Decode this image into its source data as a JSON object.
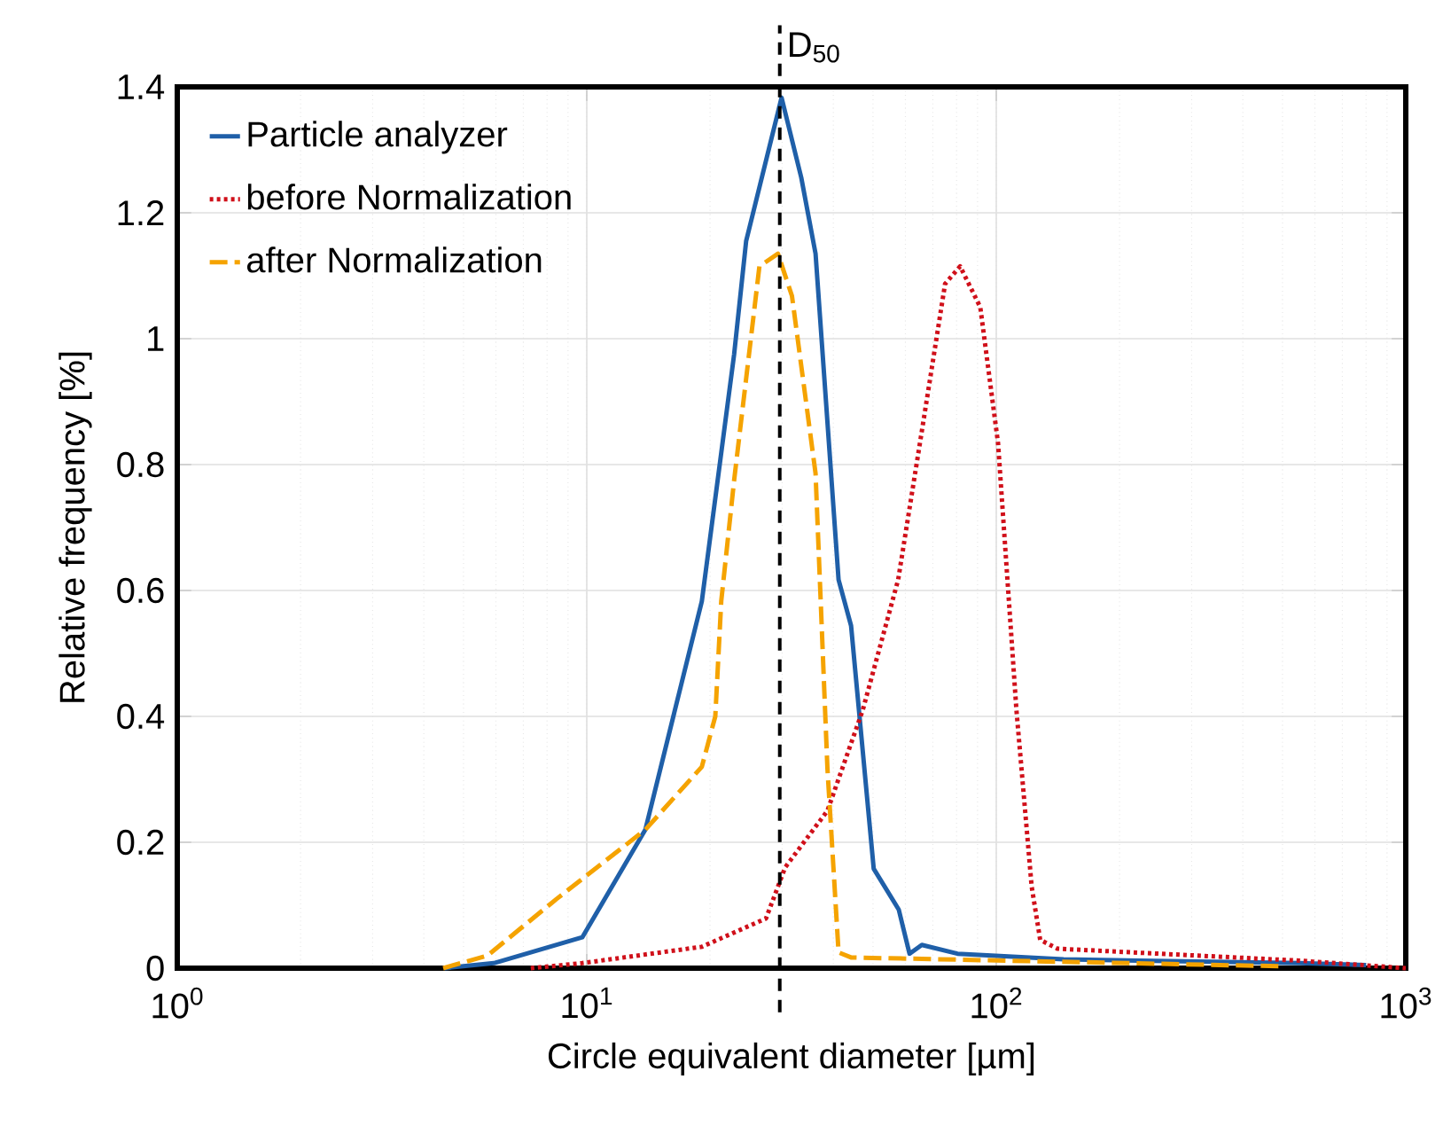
{
  "chart_data": {
    "type": "line",
    "xlabel": "Circle equivalent diameter [µm]",
    "ylabel": "Relative frequency [%]",
    "log": "x",
    "xlim": [
      1,
      1000
    ],
    "ylim": [
      0,
      1.4
    ],
    "xticks": [
      {
        "value": 1,
        "label": "10$^{0}$"
      },
      {
        "value": 10,
        "label": "10$^{1}$"
      },
      {
        "value": 100,
        "label": "10$^{2}$"
      },
      {
        "value": 1000,
        "label": "10$^{3}$"
      }
    ],
    "yticks": [
      0,
      0.2,
      0.4,
      0.6,
      0.8,
      1,
      1.2,
      1.4
    ],
    "grid": true,
    "legend": "top left",
    "ref_lines": [
      {
        "axis": "x",
        "value": 29.6,
        "label": "D$_{50}$",
        "color": "#000000",
        "line_style": "dashed"
      }
    ],
    "series": [
      {
        "name": "Particle analyzer",
        "color": "#1f5fa8",
        "line_style": "solid",
        "x": [
          4.5,
          5.93,
          9.75,
          13.9,
          19.1,
          22.9,
          24.5,
          29.9,
          33.4,
          36.2,
          41.2,
          44.2,
          50.2,
          57.8,
          61.4,
          65.8,
          80.4,
          146,
          550,
          800
        ],
        "values": [
          0,
          0.008,
          0.049,
          0.22,
          0.583,
          0.975,
          1.155,
          1.383,
          1.256,
          1.135,
          0.617,
          0.544,
          0.158,
          0.093,
          0.023,
          0.037,
          0.023,
          0.014,
          0.008,
          0.005
        ]
      },
      {
        "name": "before Normalization",
        "color": "#d0101a",
        "line_style": "dotted",
        "x": [
          7.3,
          9.75,
          19.1,
          27.4,
          30.5,
          38.7,
          47.2,
          57.6,
          65.8,
          75,
          81.6,
          91.4,
          101,
          112,
          122,
          128,
          141,
          550,
          1000
        ],
        "values": [
          0,
          0.008,
          0.034,
          0.079,
          0.16,
          0.25,
          0.41,
          0.617,
          0.853,
          1.087,
          1.115,
          1.05,
          0.834,
          0.41,
          0.13,
          0.045,
          0.031,
          0.012,
          0
        ]
      },
      {
        "name": "after Normalization",
        "color": "#f5a300",
        "line_style": "dashed",
        "x": [
          4.46,
          5.72,
          8.44,
          13.9,
          19.1,
          20.6,
          21.3,
          22.9,
          26.4,
          29.3,
          31.7,
          36.2,
          38.7,
          41.2,
          44.2,
          500
        ],
        "values": [
          0,
          0.02,
          0.11,
          0.22,
          0.32,
          0.4,
          0.583,
          0.775,
          1.115,
          1.135,
          1.068,
          0.786,
          0.318,
          0.025,
          0.017,
          0.003
        ]
      }
    ]
  }
}
